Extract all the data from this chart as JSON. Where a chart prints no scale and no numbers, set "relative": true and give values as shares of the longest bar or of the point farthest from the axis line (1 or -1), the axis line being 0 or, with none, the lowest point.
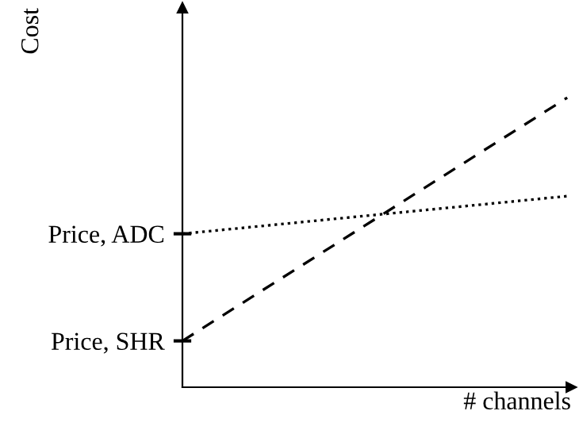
{
  "chart_data": {
    "type": "line",
    "xlabel": "# channels",
    "ylabel": "Cost",
    "relative": true,
    "categories": [
      null,
      null
    ],
    "series": [
      {
        "color": "#000000",
        "line_style": "dotted",
        "values": [
          0.53,
          0.66
        ]
      },
      {
        "color": "#000000",
        "line_style": "dashed",
        "values": [
          0.16,
          1
        ]
      }
    ],
    "annotations": [
      "Price, ADC",
      "Price, SHR"
    ],
    "grid": false,
    "legend": false,
    "marker": "none"
  }
}
